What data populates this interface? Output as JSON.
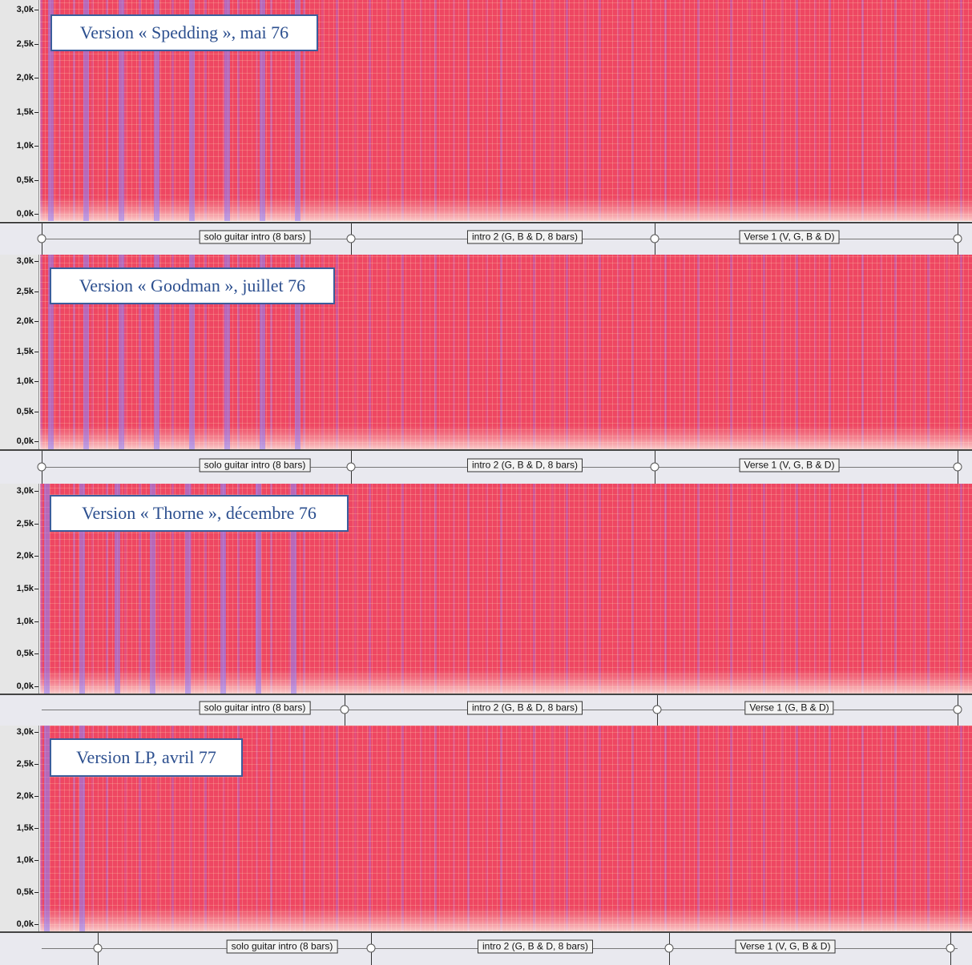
{
  "frequency_axis": {
    "ticks": [
      "3,0k",
      "2,5k",
      "2,0k",
      "1,5k",
      "1,0k",
      "0,5k",
      "0,0k"
    ]
  },
  "panels": [
    {
      "title": "Version « Spedding », mai 76",
      "labels": [
        "solo guitar intro (8 bars)",
        "intro 2 (G, B & D, 8 bars)",
        "Verse 1 (V, G, B & D)"
      ]
    },
    {
      "title": "Version « Goodman », juillet 76",
      "labels": [
        "solo guitar intro (8 bars)",
        "intro 2 (G, B & D, 8 bars)",
        "Verse 1 (V, G, B & D)"
      ]
    },
    {
      "title": "Version « Thorne », décembre 76",
      "labels": [
        "solo guitar intro (8 bars)",
        "intro 2 (G, B & D, 8 bars)",
        "Verse 1 (G, B & D)"
      ]
    },
    {
      "title": "Version LP, avril 77",
      "labels": [
        "solo guitar intro (8 bars)",
        "intro 2 (G, B & D, 8 bars)",
        "Verse 1 (V, G, B & D)"
      ]
    }
  ]
}
